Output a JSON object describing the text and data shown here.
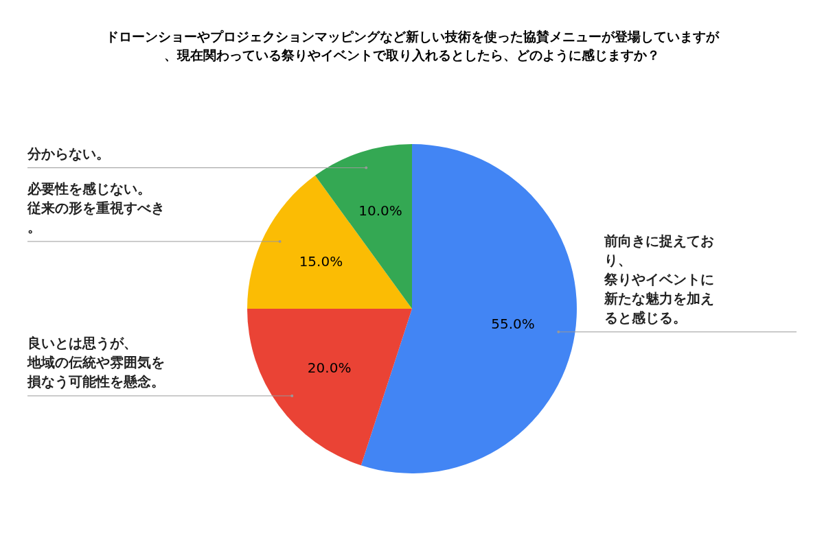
{
  "chart_data": {
    "type": "pie",
    "title": "ドローンショーやプロジェクションマッピングなど新しい技術を使った協賛メニューが登場していますが、現在関わっている祭りやイベントで取り入れるとしたら、どのように感じますか？",
    "categories": [
      "前向きに捉えており、祭りやイベントに新たな魅力を加えると感じる。",
      "良いとは思うが、地域の伝統や雰囲気を損なう可能性を懸念。",
      "必要性を感じない。従来の形を重視すべき。",
      "分からない。"
    ],
    "values": [
      55,
      20,
      15,
      10
    ],
    "colors": [
      "#4285f4",
      "#ea4335",
      "#fbbc04",
      "#34a853"
    ],
    "value_labels": [
      "55.0%",
      "20.0%",
      "15.0%",
      "10.0%"
    ]
  }
}
